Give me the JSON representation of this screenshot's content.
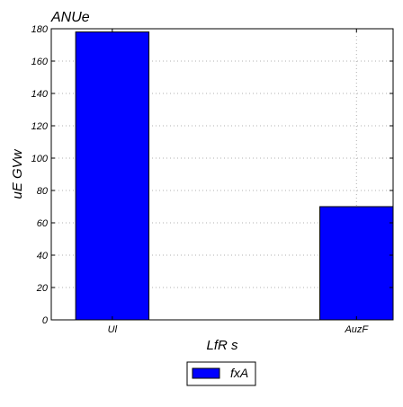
{
  "chart_data": {
    "type": "bar",
    "title": "ANUe",
    "xlabel": "LfR  s",
    "ylabel": "uE GVw",
    "categories": [
      "Ul",
      "AuzF"
    ],
    "series": [
      {
        "name": "fxA",
        "values": [
          178,
          70
        ],
        "color": "#0000ff"
      }
    ],
    "ylim": [
      0,
      180
    ],
    "yticks": [
      0,
      20,
      40,
      60,
      80,
      100,
      120,
      140,
      160,
      180
    ],
    "grid": true,
    "legend_position": "bottom-center"
  }
}
